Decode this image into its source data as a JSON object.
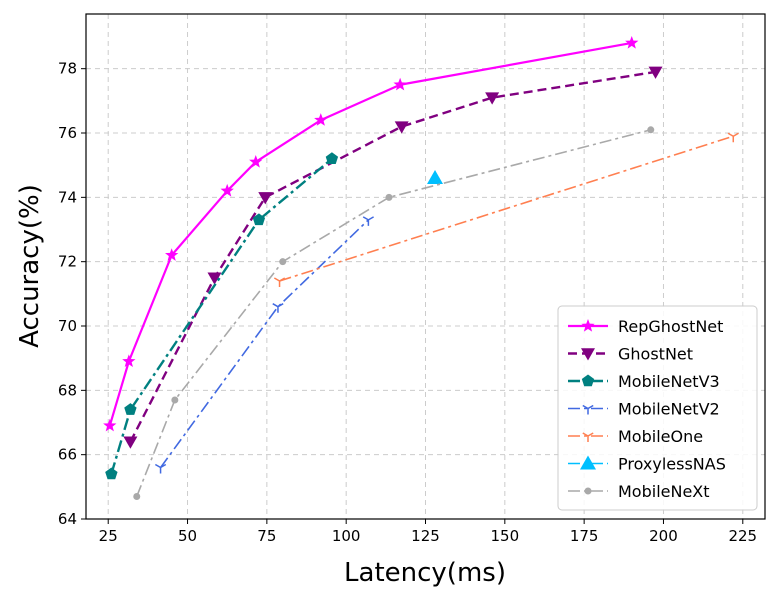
{
  "chart_data": {
    "type": "line",
    "title": "",
    "xlabel": "Latency(ms)",
    "ylabel": "Accuracy(%)",
    "xlim": [
      18,
      232
    ],
    "ylim": [
      64,
      79.7
    ],
    "xticks": [
      25,
      50,
      75,
      100,
      125,
      150,
      175,
      200,
      225
    ],
    "yticks": [
      64,
      66,
      68,
      70,
      72,
      74,
      76,
      78
    ],
    "grid": true,
    "legend_position": "lower-right",
    "series": [
      {
        "name": "RepGhostNet",
        "color": "#ff00ff",
        "line_style": "solid",
        "marker": "star",
        "x": [
          25.5,
          31.5,
          45,
          62.5,
          71.5,
          92,
          117,
          190
        ],
        "y": [
          66.9,
          68.9,
          72.2,
          74.2,
          75.1,
          76.4,
          77.5,
          78.8
        ]
      },
      {
        "name": "GhostNet",
        "color": "#800080",
        "line_style": "dashed",
        "marker": "triangle-down",
        "x": [
          32,
          58.5,
          74.5,
          117.5,
          146,
          197.5
        ],
        "y": [
          66.4,
          71.5,
          74.0,
          76.2,
          77.1,
          77.9
        ]
      },
      {
        "name": "MobileNetV3",
        "color": "#008080",
        "line_style": "dash-dot",
        "marker": "pentagon",
        "x": [
          26,
          32,
          72.5,
          95.5
        ],
        "y": [
          65.4,
          67.4,
          73.3,
          75.2
        ]
      },
      {
        "name": "MobileNetV2",
        "color": "#4169e1",
        "line_style": "dash-dot",
        "marker": "tri-down",
        "x": [
          41.5,
          78.5,
          107
        ],
        "y": [
          65.6,
          70.6,
          73.3
        ]
      },
      {
        "name": "MobileOne",
        "color": "#ff7f50",
        "line_style": "dash-dot",
        "marker": "tri-down",
        "x": [
          79,
          222
        ],
        "y": [
          71.4,
          75.9
        ]
      },
      {
        "name": "ProxylessNAS",
        "color": "#00bfff",
        "line_style": "dash-dot",
        "marker": "triangle-up",
        "x": [
          128
        ],
        "y": [
          74.6
        ]
      },
      {
        "name": "MobileNeXt",
        "color": "#a9a9a9",
        "line_style": "dash-dot",
        "marker": "circle",
        "x": [
          34,
          46,
          80,
          113.5,
          196
        ],
        "y": [
          64.7,
          67.7,
          72.0,
          74.0,
          76.1
        ]
      }
    ]
  }
}
